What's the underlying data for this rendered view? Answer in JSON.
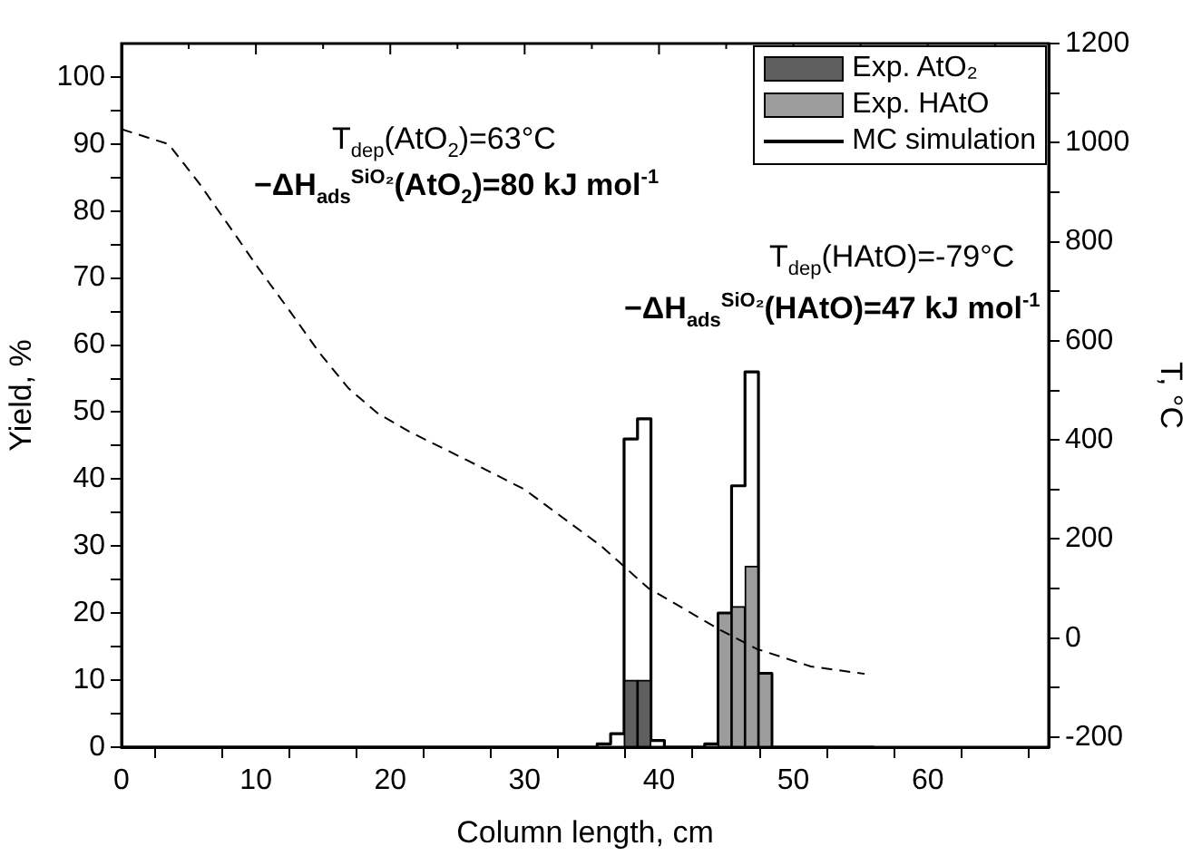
{
  "chart_data": {
    "type": "histogram",
    "xlabel": "Column length, cm",
    "ylabel": "Yield, %",
    "y2label": "T, °C",
    "annotations": [
      "T$_{dep}$(AtO$_{2}$)=63°C",
      "−ΔH$_{ads}$$^{SiO₂}$(AtO$_{2}$)=80 kJ mol$^{-1}$",
      "T$_{dep}$(HAtO)=-79°C",
      "−ΔH$_{ads}$$^{SiO₂}$(HAtO)=47 kJ mol$^{-1}$"
    ],
    "bins": [
      35.4,
      36.4,
      37.4,
      38.4,
      39.4,
      40.4,
      41.4,
      42.4,
      43.4,
      44.4,
      45.4,
      46.4,
      47.4,
      48.4
    ],
    "series": [
      {
        "name": "Exp. AtO₂",
        "color": "#5f5f5f",
        "values": [
          null,
          null,
          10,
          10,
          null,
          null,
          null,
          null,
          null,
          null,
          null,
          null,
          null
        ]
      },
      {
        "name": "Exp. HAtO",
        "color": "#9c9c9c",
        "values": [
          null,
          null,
          null,
          null,
          null,
          null,
          null,
          null,
          null,
          20,
          21,
          27,
          11
        ]
      },
      {
        "name": "MC simulation",
        "type": "step",
        "color": "#000000",
        "x": [
          0,
          35.4,
          36.4,
          37.4,
          38.4,
          39.4,
          40.4,
          43.4,
          44.4,
          45.4,
          46.4,
          47.4,
          48.4,
          56
        ],
        "values": [
          0,
          0.5,
          2,
          46,
          49,
          1,
          0,
          0.5,
          20,
          39,
          56,
          11,
          0,
          0
        ]
      },
      {
        "type": "line",
        "axis": "y2",
        "line_style": "dashed",
        "color": "#000000",
        "x": [
          0,
          3.5,
          5.8,
          8,
          10.2,
          12.5,
          14.7,
          16.9,
          19.1,
          21.4,
          25.8,
          30,
          35.7,
          39.2,
          44.6,
          47.3,
          51.3,
          55.3
        ],
        "values": [
          1027,
          997,
          917,
          832,
          746,
          661,
          577,
          504,
          453,
          417,
          358,
          300,
          186,
          101,
          16,
          -22,
          -57,
          -72
        ]
      }
    ],
    "xlim": [
      0,
      69
    ],
    "xticks": [
      0,
      {
        "value": 5,
        "label": null
      },
      10,
      {
        "value": 15,
        "label": null
      },
      20,
      {
        "value": 25,
        "label": null
      },
      30,
      {
        "value": 35,
        "label": null
      },
      40,
      {
        "value": 45,
        "label": null
      },
      50,
      {
        "value": 55,
        "label": null
      },
      60,
      {
        "value": 65,
        "label": null
      }
    ],
    "ylim": [
      0,
      105
    ],
    "yticks": [
      0,
      {
        "value": 5,
        "label": null
      },
      10,
      {
        "value": 15,
        "label": null
      },
      20,
      {
        "value": 25,
        "label": null
      },
      30,
      {
        "value": 35,
        "label": null
      },
      40,
      {
        "value": 45,
        "label": null
      },
      50,
      {
        "value": 55,
        "label": null
      },
      60,
      {
        "value": 65,
        "label": null
      },
      70,
      {
        "value": 75,
        "label": null
      },
      80,
      {
        "value": 85,
        "label": null
      },
      90,
      {
        "value": 95,
        "label": null
      },
      100
    ],
    "y2lim": [
      -220,
      1200
    ],
    "y2ticks": [
      -200,
      {
        "value": -100,
        "label": null
      },
      0,
      {
        "value": 100,
        "label": null
      },
      200,
      {
        "value": 300,
        "label": null
      },
      400,
      {
        "value": 500,
        "label": null
      },
      600,
      {
        "value": 700,
        "label": null
      },
      800,
      {
        "value": 900,
        "label": null
      },
      1000,
      {
        "value": 1100,
        "label": null
      },
      1200
    ],
    "grid": false,
    "legend": "top right",
    "marker": "none"
  }
}
